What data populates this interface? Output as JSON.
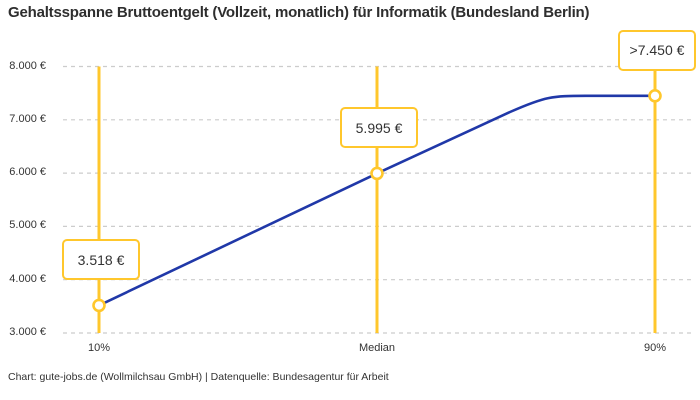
{
  "chart_data": {
    "type": "line",
    "title": "Gehaltsspanne Bruttoentgelt (Vollzeit, monatlich) für Informatik (Bundesland Berlin)",
    "categories": [
      "10%",
      "Median",
      "90%"
    ],
    "values": [
      3518,
      5995,
      7450
    ],
    "value_labels": [
      "3.518 €",
      "5.995 €",
      ">7.450 €"
    ],
    "last_value_censored": true,
    "ylim": [
      3000,
      8000
    ],
    "y_ticks": [
      3000,
      4000,
      5000,
      6000,
      7000,
      8000
    ],
    "y_tick_labels": [
      "3.000 €",
      "4.000 €",
      "5.000 €",
      "6.000 €",
      "7.000 €",
      "8.000 €"
    ],
    "grid": true,
    "legend": "none",
    "source": "Chart: gute-jobs.de (Wollmilchsau GmbH) | Datenquelle: Bundesagentur für Arbeit",
    "colors": {
      "marker_line": "#FFC72C",
      "series_line": "#2038A8",
      "grid": "#CCCCCC",
      "text": "#333333",
      "title_text": "#2E2E2E",
      "callout_bg": "#FFFFFF",
      "background": "#FFFFFF"
    }
  }
}
